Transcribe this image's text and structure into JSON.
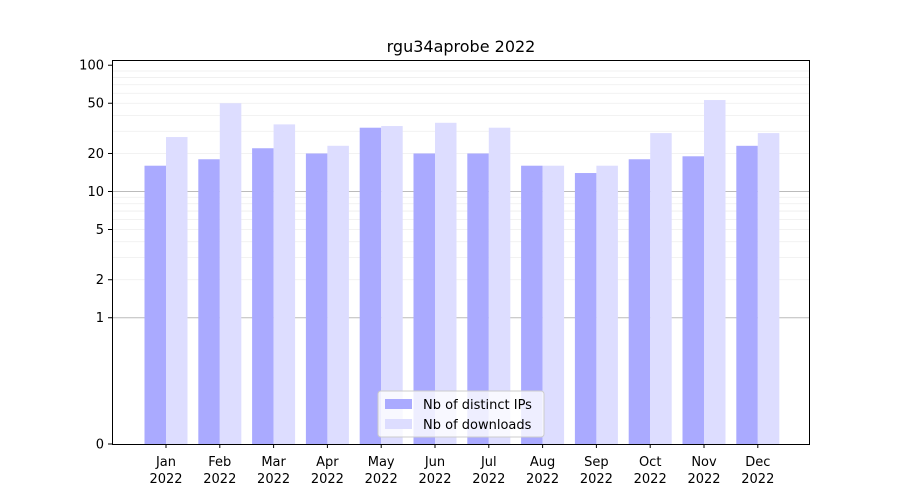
{
  "chart_data": {
    "type": "bar",
    "title": "rgu34aprobe 2022",
    "xlabel": "",
    "ylabel": "",
    "yscale": "symlog",
    "ylim": [
      0,
      110
    ],
    "yticks": [
      0,
      1,
      2,
      5,
      10,
      20,
      50,
      100
    ],
    "grid": true,
    "legend_position": "bottom-center",
    "categories": [
      [
        "Jan",
        "2022"
      ],
      [
        "Feb",
        "2022"
      ],
      [
        "Mar",
        "2022"
      ],
      [
        "Apr",
        "2022"
      ],
      [
        "May",
        "2022"
      ],
      [
        "Jun",
        "2022"
      ],
      [
        "Jul",
        "2022"
      ],
      [
        "Aug",
        "2022"
      ],
      [
        "Sep",
        "2022"
      ],
      [
        "Oct",
        "2022"
      ],
      [
        "Nov",
        "2022"
      ],
      [
        "Dec",
        "2022"
      ]
    ],
    "series": [
      {
        "name": "Nb of distinct IPs",
        "color": "#aaaaff",
        "values": [
          16,
          18,
          22,
          20,
          32,
          20,
          20,
          16,
          14,
          18,
          19,
          23
        ]
      },
      {
        "name": "Nb of downloads",
        "color": "#ddddff",
        "values": [
          27,
          50,
          34,
          23,
          33,
          35,
          32,
          16,
          16,
          29,
          53,
          29
        ]
      }
    ]
  }
}
